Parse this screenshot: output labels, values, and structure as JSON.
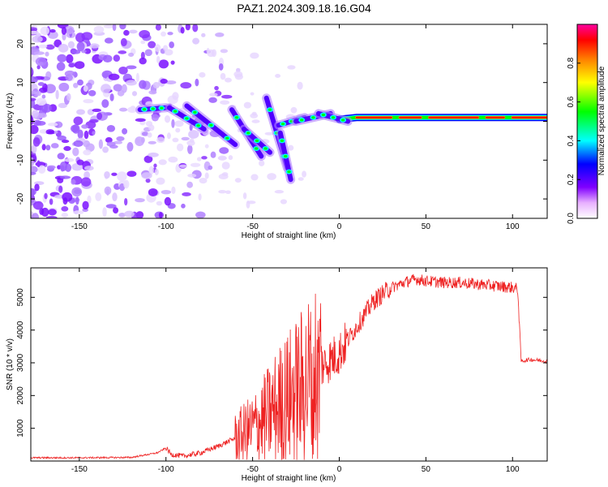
{
  "title": "PAZ1.2024.309.18.16.G04",
  "colormap": [
    "#ff00ff",
    "#8000ff",
    "#0000ff",
    "#00ffff",
    "#00ff00",
    "#ffff00",
    "#ff8000",
    "#ff0000"
  ],
  "chart_data": [
    {
      "type": "heatmap",
      "title": "PAZ1.2024.309.18.16.G04",
      "xlabel": "Height of straight line (km)",
      "ylabel": "Frequency (Hz)",
      "xlim": [
        -178,
        120
      ],
      "ylim": [
        -25,
        25
      ],
      "xticks": [
        -150,
        -100,
        -50,
        0,
        50,
        100
      ],
      "yticks": [
        -20,
        -10,
        0,
        10,
        20
      ],
      "colorbar": {
        "label": "Normalized spectral amplitude",
        "range": [
          0,
          1
        ],
        "ticks": [
          0.0,
          0.2,
          0.4,
          0.6,
          0.8
        ]
      },
      "ridge": {
        "description_points_x": [
          -115,
          -100,
          -90,
          -80,
          -70,
          -60,
          -50,
          -40,
          -30,
          -20,
          -10,
          0,
          10,
          20,
          40,
          60,
          80,
          100,
          120
        ],
        "frequency_hz": [
          2.5,
          3.5,
          3,
          1,
          -4,
          -6,
          -3,
          -2,
          -1,
          0.5,
          1,
          0.5,
          1,
          1,
          1,
          1,
          1,
          1,
          1
        ]
      }
    },
    {
      "type": "line",
      "xlabel": "Height of straight line (km)",
      "ylabel": "SNR (10 * v/v)",
      "xlim": [
        -178,
        120
      ],
      "ylim": [
        0,
        5900
      ],
      "xticks": [
        -150,
        -100,
        -50,
        0,
        50,
        100
      ],
      "yticks": [
        1000,
        2000,
        3000,
        4000,
        5000
      ],
      "color": "#ee2222",
      "x": [
        -178,
        -150,
        -120,
        -105,
        -100,
        -97,
        -90,
        -80,
        -70,
        -60,
        -50,
        -45,
        -40,
        -35,
        -30,
        -25,
        -20,
        -15,
        -10,
        -5,
        0,
        5,
        10,
        15,
        20,
        25,
        30,
        35,
        40,
        45,
        50,
        60,
        70,
        80,
        90,
        100,
        103,
        105,
        110,
        120
      ],
      "y": [
        100,
        100,
        110,
        250,
        400,
        200,
        150,
        250,
        450,
        700,
        1000,
        1200,
        1450,
        1700,
        1900,
        2100,
        2300,
        2700,
        2900,
        3100,
        3300,
        3700,
        4100,
        4500,
        4900,
        5100,
        5300,
        5400,
        5500,
        5550,
        5500,
        5450,
        5450,
        5400,
        5350,
        5300,
        5250,
        3050,
        3100,
        3050
      ]
    }
  ]
}
